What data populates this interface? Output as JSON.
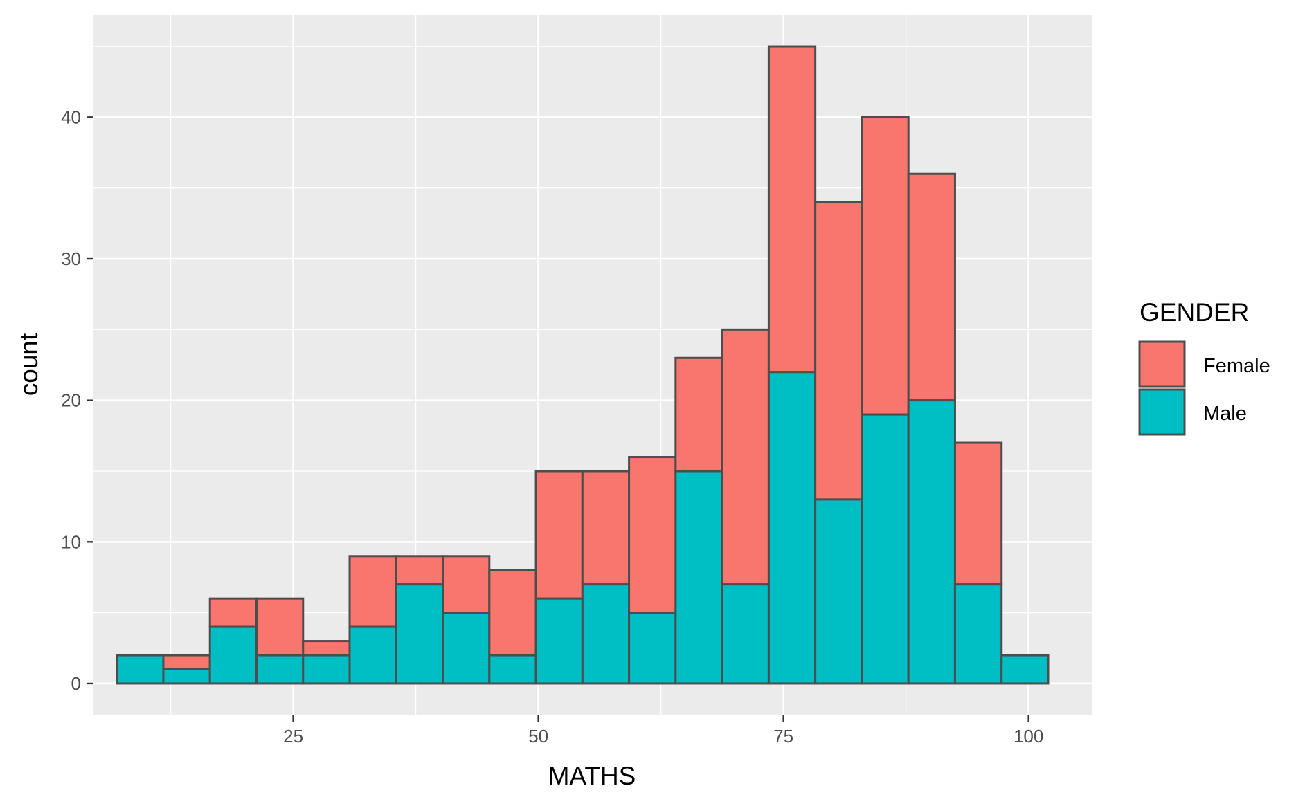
{
  "chart_data": {
    "type": "bar",
    "stacked": true,
    "title": "",
    "xlabel": "MATHS",
    "ylabel": "count",
    "xlim": [
      4.55,
      106.45
    ],
    "ylim": [
      -2.25,
      47.25
    ],
    "x_ticks": [
      25,
      50,
      75,
      100
    ],
    "x_tick_labels": [
      "25",
      "50",
      "75",
      "100"
    ],
    "y_ticks": [
      0,
      10,
      20,
      30,
      40
    ],
    "y_tick_labels": [
      "0",
      "10",
      "20",
      "30",
      "40"
    ],
    "bin_width": 4.75,
    "bin_starts": [
      7.0,
      11.75,
      16.5,
      21.25,
      26.0,
      30.75,
      35.5,
      40.25,
      45.0,
      49.75,
      54.5,
      59.25,
      64.0,
      68.75,
      73.5,
      78.25,
      83.0,
      87.75,
      92.5,
      97.25
    ],
    "series": [
      {
        "name": "Male",
        "color": "#00BFC4",
        "values": [
          2,
          1,
          4,
          2,
          2,
          4,
          7,
          5,
          2,
          6,
          7,
          5,
          15,
          7,
          22,
          13,
          19,
          20,
          7,
          2
        ]
      },
      {
        "name": "Female",
        "color": "#F8766D",
        "values": [
          0,
          1,
          2,
          4,
          1,
          5,
          2,
          4,
          6,
          9,
          8,
          11,
          8,
          18,
          23,
          21,
          21,
          16,
          10,
          0
        ]
      }
    ],
    "legend": {
      "title": "GENDER",
      "position": "right",
      "entries": [
        {
          "label": "Female",
          "color": "#F8766D"
        },
        {
          "label": "Male",
          "color": "#00BFC4"
        }
      ]
    },
    "grid": true,
    "panel_background": "#EBEBEB",
    "bar_outline": "#4D4D4D"
  }
}
